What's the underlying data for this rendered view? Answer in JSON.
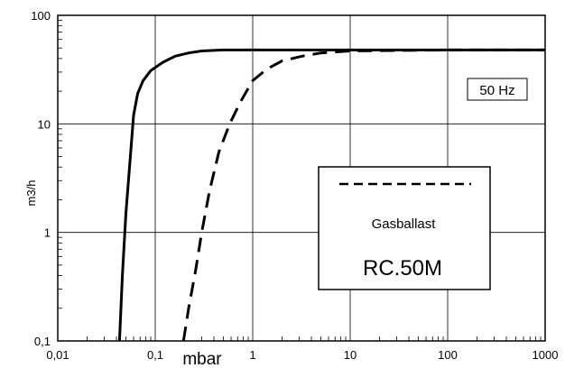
{
  "chart_data": {
    "type": "line",
    "xscale": "log",
    "yscale": "log",
    "xlim": [
      0.01,
      1000
    ],
    "ylim": [
      0.1,
      100
    ],
    "xlabel": "mbar",
    "ylabel": "m3/h",
    "x_ticks": [
      {
        "value": 0.01,
        "label": "0,01"
      },
      {
        "value": 0.1,
        "label": "0,1"
      },
      {
        "value": 1,
        "label": "1"
      },
      {
        "value": 10,
        "label": "10"
      },
      {
        "value": 100,
        "label": "100"
      },
      {
        "value": 1000,
        "label": "1000"
      }
    ],
    "y_ticks": [
      {
        "value": 0.1,
        "label": "0,1"
      },
      {
        "value": 1,
        "label": "1"
      },
      {
        "value": 10,
        "label": "10"
      },
      {
        "value": 100,
        "label": "100"
      }
    ],
    "grid": true,
    "series": [
      {
        "style": "solid",
        "x": [
          0.043,
          0.046,
          0.05,
          0.055,
          0.06,
          0.066,
          0.075,
          0.09,
          0.12,
          0.16,
          0.22,
          0.3,
          0.5,
          1,
          10,
          100,
          1000
        ],
        "y": [
          0.1,
          0.4,
          1.5,
          4.5,
          12,
          19,
          25,
          31,
          37,
          42,
          45,
          47,
          48,
          48,
          48,
          48,
          48
        ]
      },
      {
        "style": "dashed",
        "x": [
          0.195,
          0.22,
          0.26,
          0.3,
          0.36,
          0.45,
          0.58,
          0.75,
          1.0,
          1.4,
          2.0,
          3.2,
          5.0,
          10,
          100,
          1000
        ],
        "y": [
          0.1,
          0.2,
          0.45,
          1.0,
          2.4,
          5.5,
          10,
          16,
          25,
          32,
          38,
          42,
          45,
          47,
          48,
          48
        ]
      }
    ],
    "annotations": {
      "frequency": "50 Hz",
      "legend_label": "Gasballast",
      "model": "RC.50M"
    }
  }
}
